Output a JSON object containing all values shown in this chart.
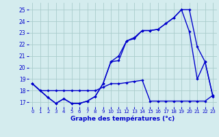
{
  "xlabel": "Graphe des températures (°c)",
  "background_color": "#d4ecee",
  "grid_color": "#aacccc",
  "line_color": "#0000cc",
  "x_ticks": [
    0,
    1,
    2,
    3,
    4,
    5,
    6,
    7,
    8,
    9,
    10,
    11,
    12,
    13,
    14,
    15,
    16,
    17,
    18,
    19,
    20,
    21,
    22,
    23
  ],
  "ylim": [
    16.6,
    25.6
  ],
  "xlim": [
    -0.5,
    23.5
  ],
  "yticks": [
    17,
    18,
    19,
    20,
    21,
    22,
    23,
    24,
    25
  ],
  "line1_y": [
    18.6,
    18.0,
    17.4,
    16.9,
    17.3,
    16.9,
    16.9,
    17.1,
    17.5,
    18.6,
    20.5,
    20.6,
    22.3,
    22.5,
    23.2,
    23.2,
    23.3,
    23.8,
    24.3,
    25.0,
    25.0,
    21.8,
    20.5,
    17.5
  ],
  "line2_y": [
    18.6,
    18.0,
    17.4,
    16.9,
    17.3,
    16.9,
    16.9,
    17.1,
    17.5,
    18.6,
    20.5,
    21.0,
    22.3,
    22.6,
    23.2,
    23.2,
    23.3,
    23.8,
    24.3,
    25.0,
    23.1,
    19.0,
    20.5,
    17.5
  ],
  "line3_y": [
    18.6,
    18.0,
    18.0,
    18.0,
    18.0,
    18.0,
    18.0,
    18.0,
    18.0,
    18.3,
    18.6,
    18.6,
    18.7,
    18.8,
    18.9,
    17.1,
    17.1,
    17.1,
    17.1,
    17.1,
    17.1,
    17.1,
    17.1,
    17.6
  ]
}
